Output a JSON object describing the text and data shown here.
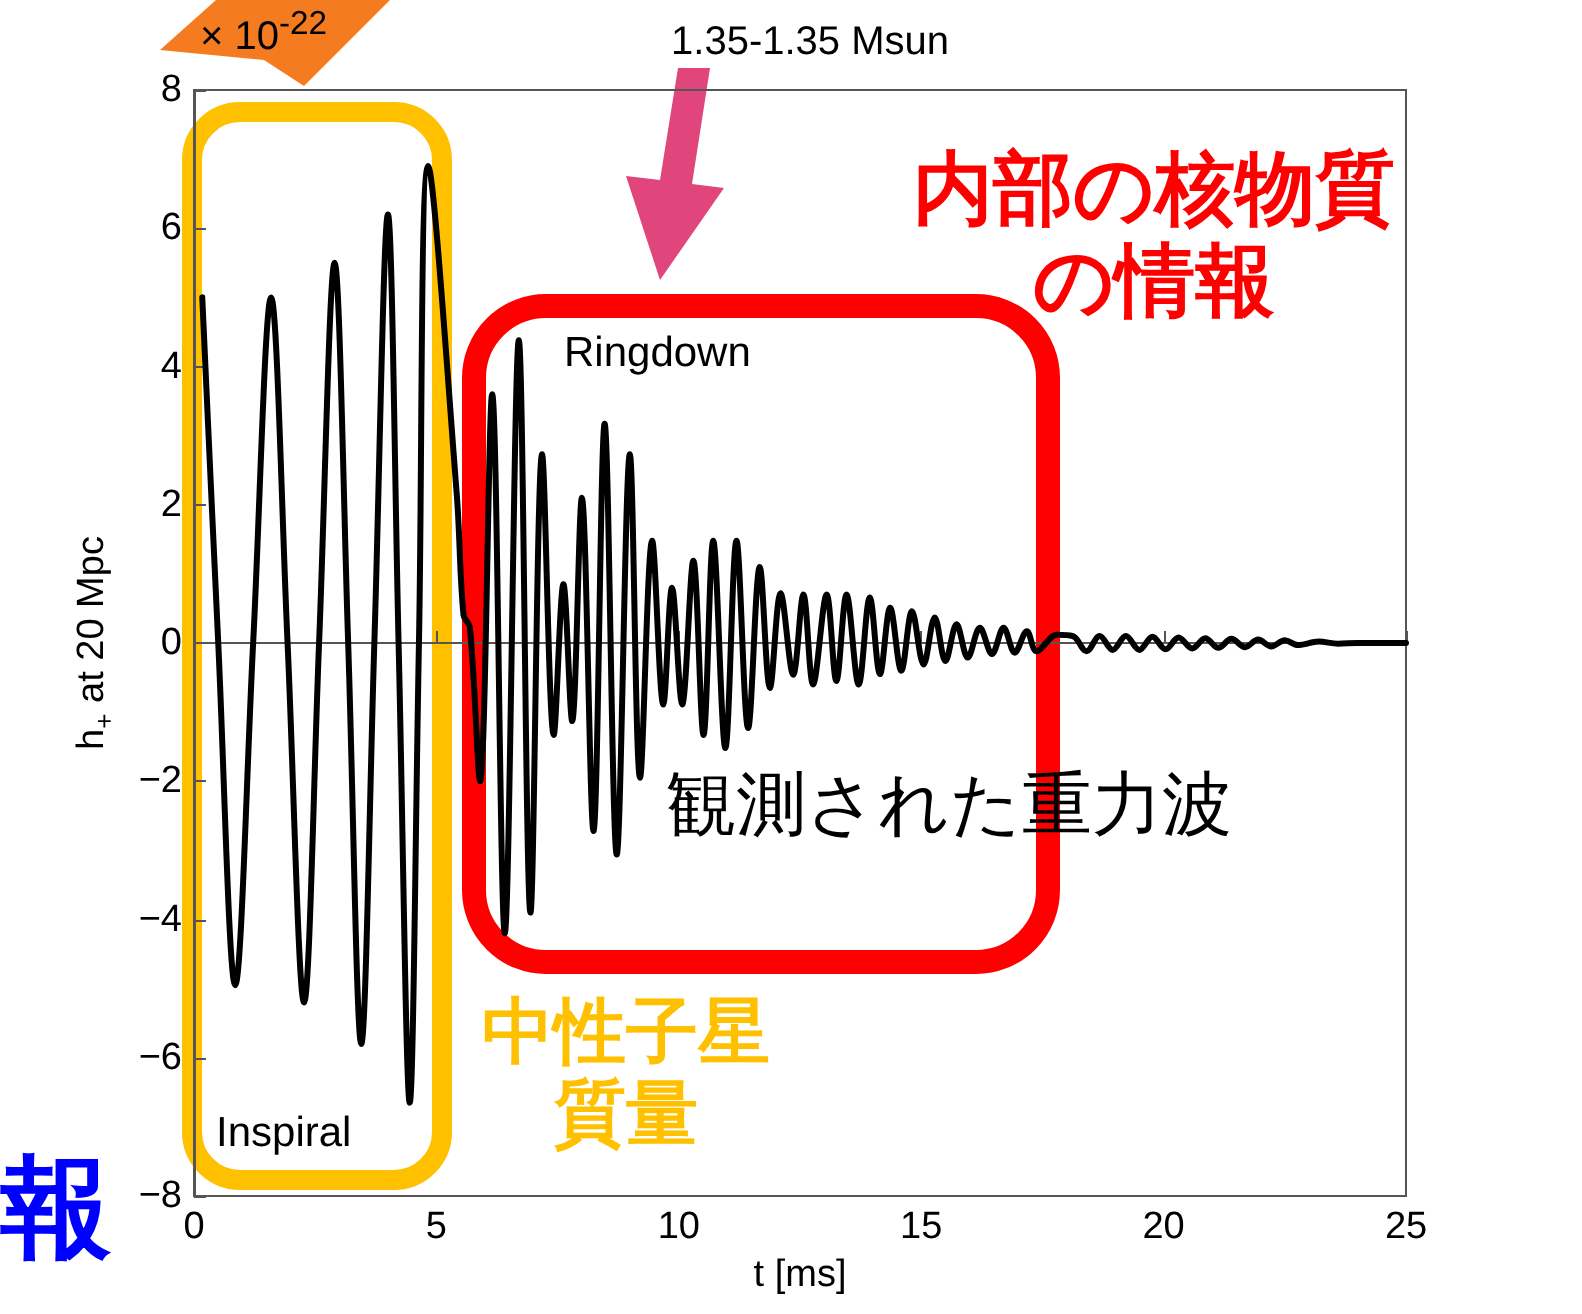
{
  "chart_data": {
    "type": "line",
    "title": "1.35-1.35 Msun",
    "xlabel": "t [ms]",
    "ylabel": "h$_{+}$ at 20 Mpc",
    "annotations": [
      "× 10$^{-22}$",
      "Inspiral",
      "Ringdown",
      "内部の核物質の情報",
      "中性子星質量",
      "観測された重力波",
      "報"
    ],
    "xlim": [
      0,
      25
    ],
    "xticks": [
      0,
      5,
      10,
      15,
      20,
      25
    ],
    "ylim": [
      -8,
      8
    ],
    "yticks": [
      -8,
      -6,
      -4,
      -2,
      0,
      2,
      4,
      6,
      8
    ],
    "series": [
      {
        "color": "#000000",
        "x": [
          0.17,
          0.5,
          0.85,
          1.22,
          1.59,
          1.93,
          2.27,
          2.58,
          2.9,
          3.18,
          3.45,
          3.72,
          4.0,
          4.22,
          4.45,
          4.64,
          4.83,
          5.42,
          5.56,
          5.69,
          5.9,
          6.15,
          6.41,
          6.7,
          6.94,
          7.18,
          7.42,
          7.62,
          7.8,
          8.0,
          8.24,
          8.47,
          8.72,
          8.99,
          9.2,
          9.45,
          9.68,
          9.86,
          10.07,
          10.3,
          10.51,
          10.71,
          10.96,
          11.19,
          11.43,
          11.67,
          11.88,
          12.1,
          12.36,
          12.57,
          12.77,
          13.05,
          13.25,
          13.46,
          13.71,
          13.94,
          14.15,
          14.36,
          14.59,
          14.81,
          15.05,
          15.28,
          15.5,
          15.73,
          15.96,
          16.21,
          16.46,
          16.7,
          16.93,
          17.18,
          17.38,
          17.8,
          18.13,
          18.41,
          18.68,
          18.95,
          19.22,
          19.5,
          19.77,
          20.04,
          20.31,
          20.59,
          20.86,
          21.13,
          21.4,
          21.68,
          21.95,
          22.22,
          22.5,
          22.77,
          23.2,
          23.6,
          24,
          25
        ],
        "values": [
          5.0,
          0,
          -4.95,
          0,
          5.0,
          0,
          -5.2,
          0,
          5.5,
          0,
          -5.8,
          0,
          6.2,
          0,
          -6.65,
          0,
          6.9,
          2.15,
          0.4,
          0.23,
          -2.0,
          3.6,
          -4.2,
          4.38,
          -3.9,
          2.73,
          -1.33,
          0.85,
          -1.13,
          2.1,
          -2.72,
          3.17,
          -3.06,
          2.73,
          -1.95,
          1.48,
          -0.89,
          0.8,
          -0.89,
          1.19,
          -1.33,
          1.48,
          -1.52,
          1.48,
          -1.23,
          1.1,
          -0.65,
          0.72,
          -0.46,
          0.7,
          -0.6,
          0.7,
          -0.55,
          0.7,
          -0.6,
          0.66,
          -0.45,
          0.51,
          -0.4,
          0.46,
          -0.31,
          0.37,
          -0.26,
          0.27,
          -0.21,
          0.22,
          -0.16,
          0.22,
          -0.14,
          0.17,
          -0.12,
          0.12,
          0.1,
          -0.12,
          0.1,
          -0.1,
          0.1,
          -0.1,
          0.09,
          -0.09,
          0.08,
          -0.08,
          0.07,
          -0.07,
          0.06,
          -0.06,
          0.05,
          -0.05,
          0.04,
          -0.03,
          0.02,
          -0.01,
          0,
          0
        ]
      }
    ]
  }
}
